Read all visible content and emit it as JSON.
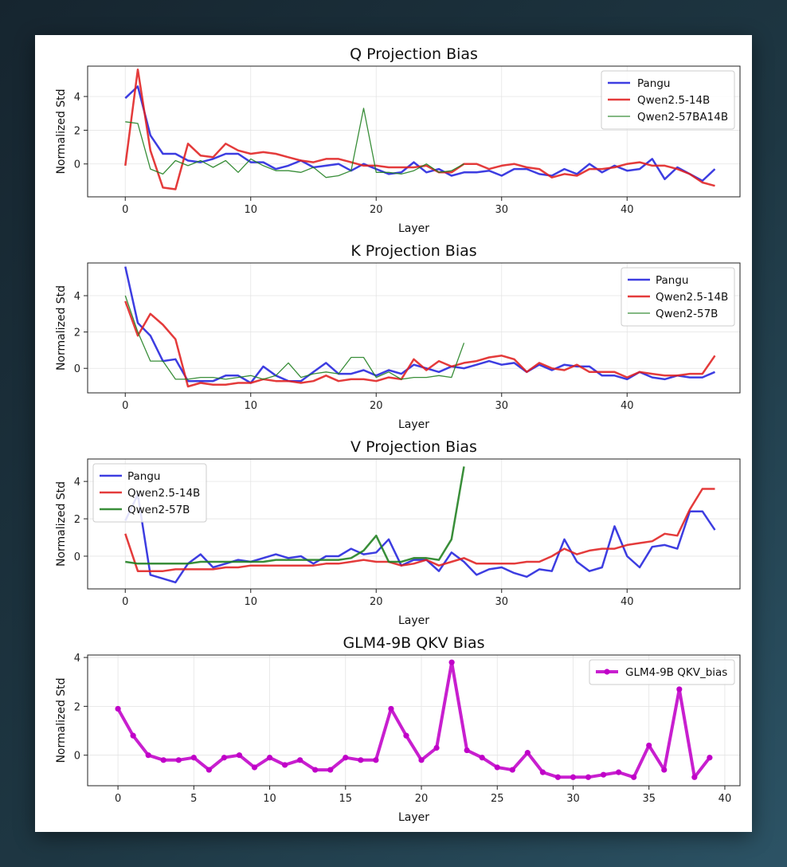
{
  "chart_data": [
    {
      "type": "line",
      "title": "Q Projection Bias",
      "xlabel": "Layer",
      "ylabel": "Normalized Std",
      "xlim": [
        -3,
        49
      ],
      "ylim": [
        -1.95,
        5.8
      ],
      "xticks": [
        0,
        10,
        20,
        30,
        40
      ],
      "yticks": [
        0,
        2,
        4
      ],
      "grid": true,
      "legend_position": "top-right",
      "series": [
        {
          "name": "Pangu",
          "color": "#2222dd",
          "width": 2.5,
          "x": [
            0,
            1,
            2,
            3,
            4,
            5,
            6,
            7,
            8,
            9,
            10,
            11,
            12,
            13,
            14,
            15,
            16,
            17,
            18,
            19,
            20,
            21,
            22,
            23,
            24,
            25,
            26,
            27,
            28,
            29,
            30,
            31,
            32,
            33,
            34,
            35,
            36,
            37,
            38,
            39,
            40,
            41,
            42,
            43,
            44,
            45,
            46,
            47
          ],
          "y": [
            3.9,
            4.6,
            1.7,
            0.6,
            0.6,
            0.2,
            0.1,
            0.3,
            0.6,
            0.6,
            0.1,
            0.1,
            -0.3,
            -0.1,
            0.2,
            -0.2,
            -0.1,
            0.0,
            -0.4,
            0.0,
            -0.3,
            -0.6,
            -0.5,
            0.1,
            -0.5,
            -0.3,
            -0.7,
            -0.5,
            -0.5,
            -0.4,
            -0.7,
            -0.3,
            -0.3,
            -0.6,
            -0.7,
            -0.3,
            -0.6,
            0.0,
            -0.5,
            -0.1,
            -0.4,
            -0.3,
            0.3,
            -0.9,
            -0.2,
            -0.6,
            -1.0,
            -0.3
          ]
        },
        {
          "name": "Qwen2.5-14B",
          "color": "#e02020",
          "width": 2.5,
          "x": [
            0,
            1,
            2,
            3,
            4,
            5,
            6,
            7,
            8,
            9,
            10,
            11,
            12,
            13,
            14,
            15,
            16,
            17,
            18,
            19,
            20,
            21,
            22,
            23,
            24,
            25,
            26,
            27,
            28,
            29,
            30,
            31,
            32,
            33,
            34,
            35,
            36,
            37,
            38,
            39,
            40,
            41,
            42,
            43,
            44,
            45,
            46,
            47
          ],
          "y": [
            -0.1,
            5.6,
            0.8,
            -1.4,
            -1.5,
            1.2,
            0.5,
            0.4,
            1.2,
            0.8,
            0.6,
            0.7,
            0.6,
            0.4,
            0.2,
            0.1,
            0.3,
            0.3,
            0.1,
            -0.1,
            -0.1,
            -0.2,
            -0.2,
            -0.2,
            -0.1,
            -0.5,
            -0.5,
            0.0,
            0.0,
            -0.3,
            -0.1,
            0.0,
            -0.2,
            -0.3,
            -0.8,
            -0.6,
            -0.7,
            -0.3,
            -0.3,
            -0.2,
            0.0,
            0.1,
            -0.1,
            -0.1,
            -0.3,
            -0.6,
            -1.1,
            -1.3
          ]
        },
        {
          "name": "Qwen2-57BA14B",
          "color": "#1e7e1e",
          "width": 1.3,
          "x": [
            0,
            1,
            2,
            3,
            4,
            5,
            6,
            7,
            8,
            9,
            10,
            11,
            12,
            13,
            14,
            15,
            16,
            17,
            18,
            19,
            20,
            21,
            22,
            23,
            24,
            25,
            26,
            27
          ],
          "y": [
            2.5,
            2.4,
            -0.3,
            -0.6,
            0.2,
            -0.1,
            0.2,
            -0.2,
            0.2,
            -0.5,
            0.3,
            -0.1,
            -0.4,
            -0.4,
            -0.5,
            -0.2,
            -0.8,
            -0.7,
            -0.4,
            3.3,
            -0.5,
            -0.5,
            -0.6,
            -0.4,
            0.0,
            -0.5,
            -0.4,
            0.0
          ]
        }
      ]
    },
    {
      "type": "line",
      "title": "K Projection Bias",
      "xlabel": "Layer",
      "ylabel": "Normalized Std",
      "xlim": [
        -3,
        49
      ],
      "ylim": [
        -1.35,
        5.8
      ],
      "xticks": [
        0,
        10,
        20,
        30,
        40
      ],
      "yticks": [
        0,
        2,
        4
      ],
      "grid": true,
      "legend_position": "top-right",
      "series": [
        {
          "name": "Pangu",
          "color": "#2222dd",
          "width": 2.5,
          "x": [
            0,
            1,
            2,
            3,
            4,
            5,
            6,
            7,
            8,
            9,
            10,
            11,
            12,
            13,
            14,
            15,
            16,
            17,
            18,
            19,
            20,
            21,
            22,
            23,
            24,
            25,
            26,
            27,
            28,
            29,
            30,
            31,
            32,
            33,
            34,
            35,
            36,
            37,
            38,
            39,
            40,
            41,
            42,
            43,
            44,
            45,
            46,
            47
          ],
          "y": [
            5.6,
            2.5,
            1.8,
            0.4,
            0.5,
            -0.7,
            -0.7,
            -0.7,
            -0.4,
            -0.4,
            -0.8,
            0.1,
            -0.4,
            -0.7,
            -0.7,
            -0.2,
            0.3,
            -0.3,
            -0.3,
            -0.1,
            -0.4,
            -0.1,
            -0.3,
            0.2,
            0.0,
            -0.2,
            0.1,
            0.0,
            0.2,
            0.4,
            0.2,
            0.3,
            -0.2,
            0.2,
            -0.1,
            0.2,
            0.1,
            0.1,
            -0.4,
            -0.4,
            -0.6,
            -0.2,
            -0.5,
            -0.6,
            -0.4,
            -0.5,
            -0.5,
            -0.2
          ]
        },
        {
          "name": "Qwen2.5-14B",
          "color": "#e02020",
          "width": 2.5,
          "x": [
            0,
            1,
            2,
            3,
            4,
            5,
            6,
            7,
            8,
            9,
            10,
            11,
            12,
            13,
            14,
            15,
            16,
            17,
            18,
            19,
            20,
            21,
            22,
            23,
            24,
            25,
            26,
            27,
            28,
            29,
            30,
            31,
            32,
            33,
            34,
            35,
            36,
            37,
            38,
            39,
            40,
            41,
            42,
            43,
            44,
            45,
            46,
            47
          ],
          "y": [
            3.7,
            1.8,
            3.0,
            2.4,
            1.6,
            -1.0,
            -0.8,
            -0.9,
            -0.9,
            -0.8,
            -0.8,
            -0.6,
            -0.7,
            -0.7,
            -0.8,
            -0.7,
            -0.4,
            -0.7,
            -0.6,
            -0.6,
            -0.7,
            -0.5,
            -0.6,
            0.5,
            -0.1,
            0.4,
            0.1,
            0.3,
            0.4,
            0.6,
            0.7,
            0.5,
            -0.2,
            0.3,
            0.0,
            -0.1,
            0.2,
            -0.2,
            -0.2,
            -0.2,
            -0.5,
            -0.2,
            -0.3,
            -0.4,
            -0.4,
            -0.3,
            -0.3,
            0.7
          ]
        },
        {
          "name": "Qwen2-57B",
          "color": "#1e7e1e",
          "width": 1.3,
          "x": [
            0,
            1,
            2,
            3,
            4,
            5,
            6,
            7,
            8,
            9,
            10,
            11,
            12,
            13,
            14,
            15,
            16,
            17,
            18,
            19,
            20,
            21,
            22,
            23,
            24,
            25,
            26,
            27
          ],
          "y": [
            4.0,
            2.0,
            0.4,
            0.4,
            -0.6,
            -0.6,
            -0.5,
            -0.5,
            -0.6,
            -0.5,
            -0.4,
            -0.6,
            -0.4,
            0.3,
            -0.5,
            -0.3,
            -0.2,
            -0.3,
            0.6,
            0.6,
            -0.5,
            -0.2,
            -0.6,
            -0.5,
            -0.5,
            -0.4,
            -0.5,
            1.4
          ]
        }
      ]
    },
    {
      "type": "line",
      "title": "V Projection Bias",
      "xlabel": "Layer",
      "ylabel": "Normalized Std",
      "xlim": [
        -3,
        49
      ],
      "ylim": [
        -1.75,
        5.2
      ],
      "xticks": [
        0,
        10,
        20,
        30,
        40
      ],
      "yticks": [
        0,
        2,
        4
      ],
      "grid": true,
      "legend_position": "top-left",
      "series": [
        {
          "name": "Pangu",
          "color": "#2222dd",
          "width": 2.5,
          "x": [
            0,
            1,
            2,
            3,
            4,
            5,
            6,
            7,
            8,
            9,
            10,
            11,
            12,
            13,
            14,
            15,
            16,
            17,
            18,
            19,
            20,
            21,
            22,
            23,
            24,
            25,
            26,
            27,
            28,
            29,
            30,
            31,
            32,
            33,
            34,
            35,
            36,
            37,
            38,
            39,
            40,
            41,
            42,
            43,
            44,
            45,
            46,
            47
          ],
          "y": [
            1.9,
            3.3,
            -1.0,
            -1.2,
            -1.4,
            -0.4,
            0.1,
            -0.6,
            -0.4,
            -0.2,
            -0.3,
            -0.1,
            0.1,
            -0.1,
            0.0,
            -0.4,
            0.0,
            0.0,
            0.4,
            0.1,
            0.2,
            0.9,
            -0.5,
            -0.2,
            -0.2,
            -0.8,
            0.2,
            -0.3,
            -1.0,
            -0.7,
            -0.6,
            -0.9,
            -1.1,
            -0.7,
            -0.8,
            0.9,
            -0.3,
            -0.8,
            -0.6,
            1.6,
            0.0,
            -0.6,
            0.5,
            0.6,
            0.4,
            2.4,
            2.4,
            1.4
          ]
        },
        {
          "name": "Qwen2.5-14B",
          "color": "#e02020",
          "width": 2.5,
          "x": [
            0,
            1,
            2,
            3,
            4,
            5,
            6,
            7,
            8,
            9,
            10,
            11,
            12,
            13,
            14,
            15,
            16,
            17,
            18,
            19,
            20,
            21,
            22,
            23,
            24,
            25,
            26,
            27,
            28,
            29,
            30,
            31,
            32,
            33,
            34,
            35,
            36,
            37,
            38,
            39,
            40,
            41,
            42,
            43,
            44,
            45,
            46,
            47
          ],
          "y": [
            1.2,
            -0.8,
            -0.8,
            -0.8,
            -0.7,
            -0.7,
            -0.7,
            -0.7,
            -0.6,
            -0.6,
            -0.5,
            -0.5,
            -0.5,
            -0.5,
            -0.5,
            -0.5,
            -0.4,
            -0.4,
            -0.3,
            -0.2,
            -0.3,
            -0.3,
            -0.5,
            -0.4,
            -0.2,
            -0.5,
            -0.3,
            -0.1,
            -0.4,
            -0.4,
            -0.4,
            -0.4,
            -0.3,
            -0.3,
            0.0,
            0.4,
            0.1,
            0.3,
            0.4,
            0.4,
            0.6,
            0.7,
            0.8,
            1.2,
            1.1,
            2.5,
            3.6,
            3.6
          ]
        },
        {
          "name": "Qwen2-57B",
          "color": "#1e7e1e",
          "width": 2.5,
          "x": [
            0,
            1,
            2,
            3,
            4,
            5,
            6,
            7,
            8,
            9,
            10,
            11,
            12,
            13,
            14,
            15,
            16,
            17,
            18,
            19,
            20,
            21,
            22,
            23,
            24,
            25,
            26,
            27
          ],
          "y": [
            -0.3,
            -0.4,
            -0.4,
            -0.4,
            -0.4,
            -0.4,
            -0.3,
            -0.3,
            -0.3,
            -0.3,
            -0.3,
            -0.3,
            -0.2,
            -0.2,
            -0.2,
            -0.2,
            -0.2,
            -0.2,
            -0.1,
            0.3,
            1.1,
            -0.3,
            -0.3,
            -0.1,
            -0.1,
            -0.2,
            0.9,
            4.8
          ]
        }
      ]
    },
    {
      "type": "line",
      "title": "GLM4-9B QKV Bias",
      "xlabel": "Layer",
      "ylabel": "Normalized Std",
      "xlim": [
        -2,
        41
      ],
      "ylim": [
        -1.25,
        4.1
      ],
      "xticks": [
        0,
        5,
        10,
        15,
        20,
        25,
        30,
        35,
        40
      ],
      "yticks": [
        0,
        2,
        4
      ],
      "grid": true,
      "legend_position": "top-right",
      "series": [
        {
          "name": "GLM4-9B QKV_bias",
          "color": "#c000c8",
          "width": 4,
          "markers": true,
          "x": [
            0,
            1,
            2,
            3,
            4,
            5,
            6,
            7,
            8,
            9,
            10,
            11,
            12,
            13,
            14,
            15,
            16,
            17,
            18,
            19,
            20,
            21,
            22,
            23,
            24,
            25,
            26,
            27,
            28,
            29,
            30,
            31,
            32,
            33,
            34,
            35,
            36,
            37,
            38,
            39
          ],
          "y": [
            1.9,
            0.8,
            0.0,
            -0.2,
            -0.2,
            -0.1,
            -0.6,
            -0.1,
            0.0,
            -0.5,
            -0.1,
            -0.4,
            -0.2,
            -0.6,
            -0.6,
            -0.1,
            -0.2,
            -0.2,
            1.9,
            0.8,
            -0.2,
            0.3,
            3.8,
            0.2,
            -0.1,
            -0.5,
            -0.6,
            0.1,
            -0.7,
            -0.9,
            -0.9,
            -0.9,
            -0.8,
            -0.7,
            -0.9,
            0.4,
            -0.6,
            2.7,
            -0.9,
            -0.1
          ]
        }
      ]
    }
  ]
}
